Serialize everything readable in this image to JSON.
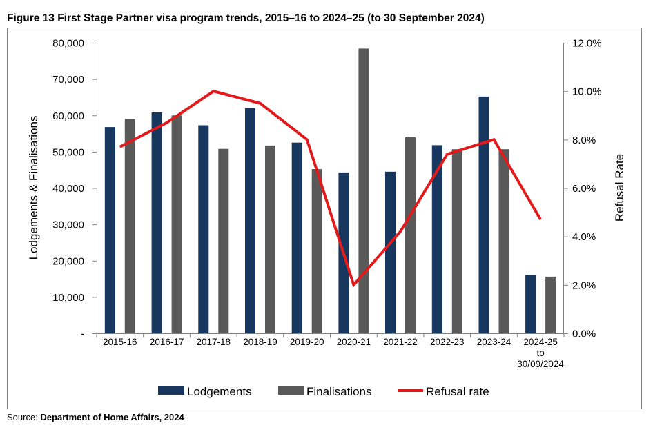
{
  "title": "Figure 13 First Stage Partner visa program trends, 2015–16 to 2024–25 (to 30 September 2024)",
  "source_label": "Source: ",
  "source_name": "Department of Home Affairs, 2024",
  "colors": {
    "lodgements": "#17375e",
    "finalisations": "#595959",
    "refusal": "#e31a1c"
  },
  "chart_data": {
    "type": "bar",
    "categories": [
      [
        "2015-16"
      ],
      [
        "2016-17"
      ],
      [
        "2017-18"
      ],
      [
        "2018-19"
      ],
      [
        "2019-20"
      ],
      [
        "2020-21"
      ],
      [
        "2021-22"
      ],
      [
        "2022-23"
      ],
      [
        "2023-24"
      ],
      [
        "2024-25",
        "to",
        "30/09/2024"
      ]
    ],
    "series": [
      {
        "name": "Lodgements",
        "type": "bar",
        "axis": "left",
        "values": [
          56800,
          60800,
          57300,
          62000,
          52500,
          44300,
          44500,
          51800,
          65200,
          16100
        ]
      },
      {
        "name": "Finalisations",
        "type": "bar",
        "axis": "left",
        "values": [
          59000,
          60000,
          50800,
          51700,
          45200,
          78400,
          54000,
          50700,
          50700,
          15600
        ]
      },
      {
        "name": "Refusal rate",
        "type": "line",
        "axis": "right",
        "values": [
          7.7,
          8.7,
          10.0,
          9.5,
          8.0,
          2.0,
          4.2,
          7.4,
          8.0,
          4.7
        ]
      }
    ],
    "ylabel": "Lodgements & Finalisations",
    "y2label": "Refusal Rate",
    "ylim": [
      0,
      80000
    ],
    "y2lim": [
      0,
      12
    ],
    "yticks": [
      "-",
      "10,000",
      "20,000",
      "30,000",
      "40,000",
      "50,000",
      "60,000",
      "70,000",
      "80,000"
    ],
    "y2ticks": [
      "0.0%",
      "2.0%",
      "4.0%",
      "6.0%",
      "8.0%",
      "10.0%",
      "12.0%"
    ],
    "legend_position": "bottom",
    "grid": false
  }
}
